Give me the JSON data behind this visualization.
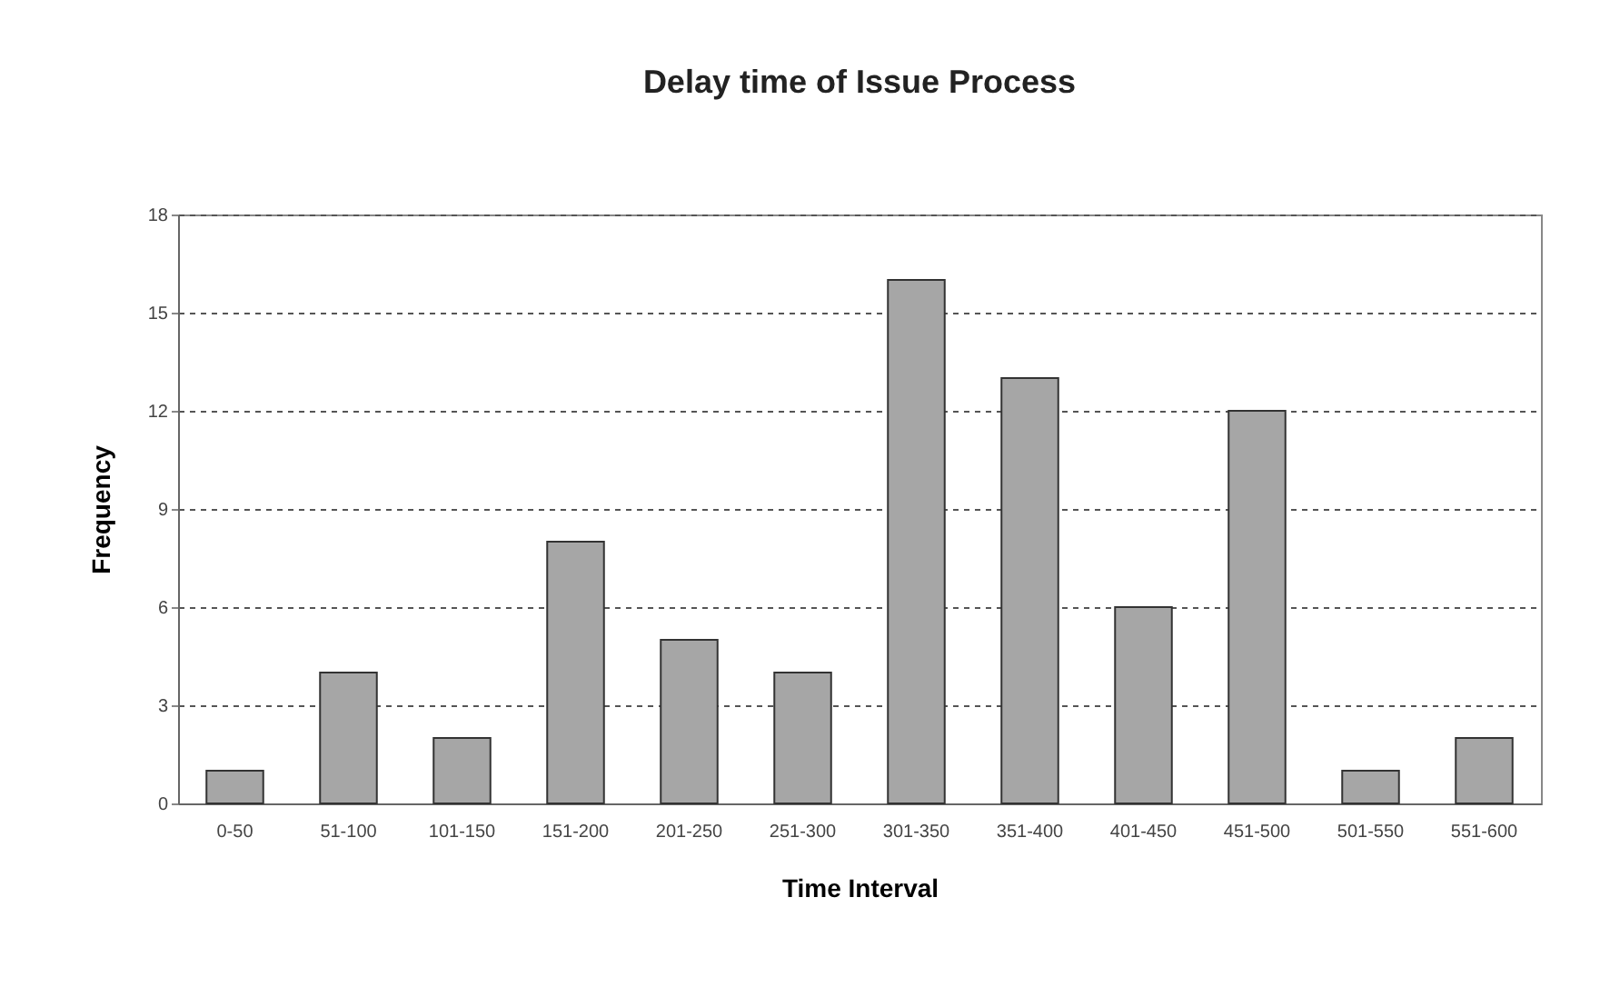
{
  "chart_data": {
    "type": "bar",
    "title": "Delay time of Issue Process",
    "xlabel": "Time Interval",
    "ylabel": "Frequency",
    "categories": [
      "0-50",
      "51-100",
      "101-150",
      "151-200",
      "201-250",
      "251-300",
      "301-350",
      "351-400",
      "401-450",
      "451-500",
      "501-550",
      "551-600"
    ],
    "values": [
      1,
      4,
      2,
      8,
      5,
      4,
      16,
      13,
      6,
      12,
      1,
      2
    ],
    "color": "#a6a6a6",
    "ylim": [
      0,
      18
    ],
    "yticks": [
      0,
      3,
      6,
      9,
      12,
      15,
      18
    ],
    "grid": "y"
  }
}
